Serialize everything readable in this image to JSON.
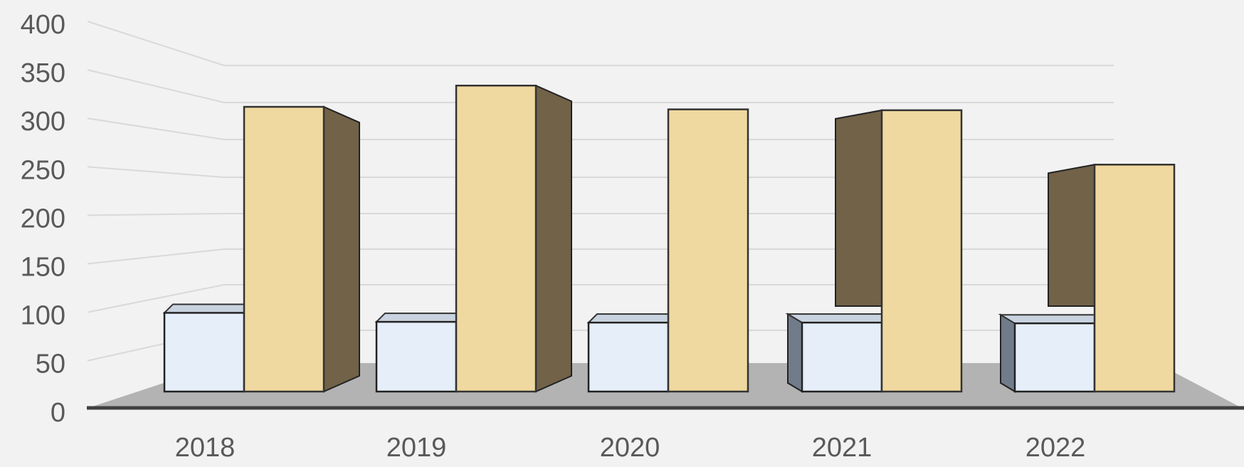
{
  "chart_data": {
    "type": "bar",
    "variant": "3d-clustered-column",
    "categories": [
      "2018",
      "2019",
      "2020",
      "2021",
      "2022"
    ],
    "series": [
      {
        "values": [
          105,
          93,
          92,
          92,
          91
        ],
        "color": "#e6eefa"
      },
      {
        "values": [
          335,
          360,
          332,
          331,
          267
        ],
        "color": "#f0d9a0"
      }
    ],
    "y_ticks": [
      "0",
      "50",
      "100",
      "150",
      "200",
      "250",
      "300",
      "350",
      "400"
    ],
    "ylim": [
      0,
      400
    ],
    "grid": true,
    "legend": "none",
    "colors": {
      "background": "#f2f2f2",
      "floor": "#b3b3b3",
      "axis": "#404040",
      "gridline": "#d9d9d9",
      "tick_text": "#595959",
      "bar_side_light": "#717c8a",
      "bar_side_dark": "#716248"
    }
  }
}
